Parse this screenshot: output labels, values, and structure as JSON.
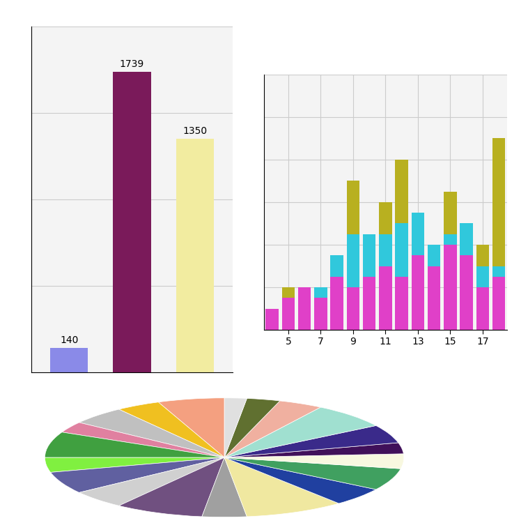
{
  "chart_data": [
    {
      "type": "bar",
      "categories": [
        null,
        null,
        null
      ],
      "values": [
        140,
        1739,
        1350
      ],
      "colors": [
        "#8a8ae8",
        "#7a1a5a",
        "#f2eca0"
      ],
      "ylim": [
        0,
        2000
      ],
      "yticks": [
        0,
        500,
        1000,
        1500,
        2000
      ],
      "grid": true,
      "tick_labels": false,
      "data_labels": true
    },
    {
      "type": "bar",
      "stacked": true,
      "x": [
        4,
        5,
        6,
        7,
        8,
        9,
        10,
        11,
        12,
        13,
        14,
        15,
        16,
        17,
        18
      ],
      "series": [
        {
          "color": "#e040c8",
          "values": [
            10,
            15,
            20,
            15,
            25,
            20,
            25,
            30,
            25,
            35,
            30,
            40,
            35,
            20,
            25
          ]
        },
        {
          "color": "#30c8dc",
          "values": [
            0,
            0,
            0,
            5,
            10,
            25,
            20,
            15,
            25,
            20,
            10,
            5,
            15,
            10,
            5
          ]
        },
        {
          "color": "#b8b020",
          "values": [
            0,
            5,
            0,
            0,
            0,
            25,
            0,
            15,
            30,
            0,
            0,
            20,
            0,
            10,
            60
          ]
        }
      ],
      "xlim": [
        3.5,
        18.5
      ],
      "xticks": [
        5,
        7,
        9,
        11,
        13,
        15,
        17
      ],
      "ylim": [
        0,
        120
      ],
      "yticks": [
        0,
        20,
        40,
        60,
        80,
        100,
        120
      ],
      "grid": true,
      "tick_labels": "x"
    },
    {
      "type": "pie",
      "values": [
        6,
        4,
        5,
        3,
        7,
        4,
        6,
        5,
        8,
        4,
        9,
        5,
        6,
        4,
        3,
        5,
        7,
        4,
        3,
        2
      ],
      "colors": [
        "#f4a080",
        "#f0c020",
        "#c0c0c0",
        "#e080a0",
        "#40a040",
        "#80f040",
        "#6060a0",
        "#d0d0d0",
        "#705080",
        "#a0a0a0",
        "#f0e8a0",
        "#2040a0",
        "#40a060",
        "#f8f8e0",
        "#40105a",
        "#3a2a8a",
        "#a0e0d0",
        "#f0b0a0",
        "#607030",
        "#e0e0e0"
      ]
    }
  ]
}
